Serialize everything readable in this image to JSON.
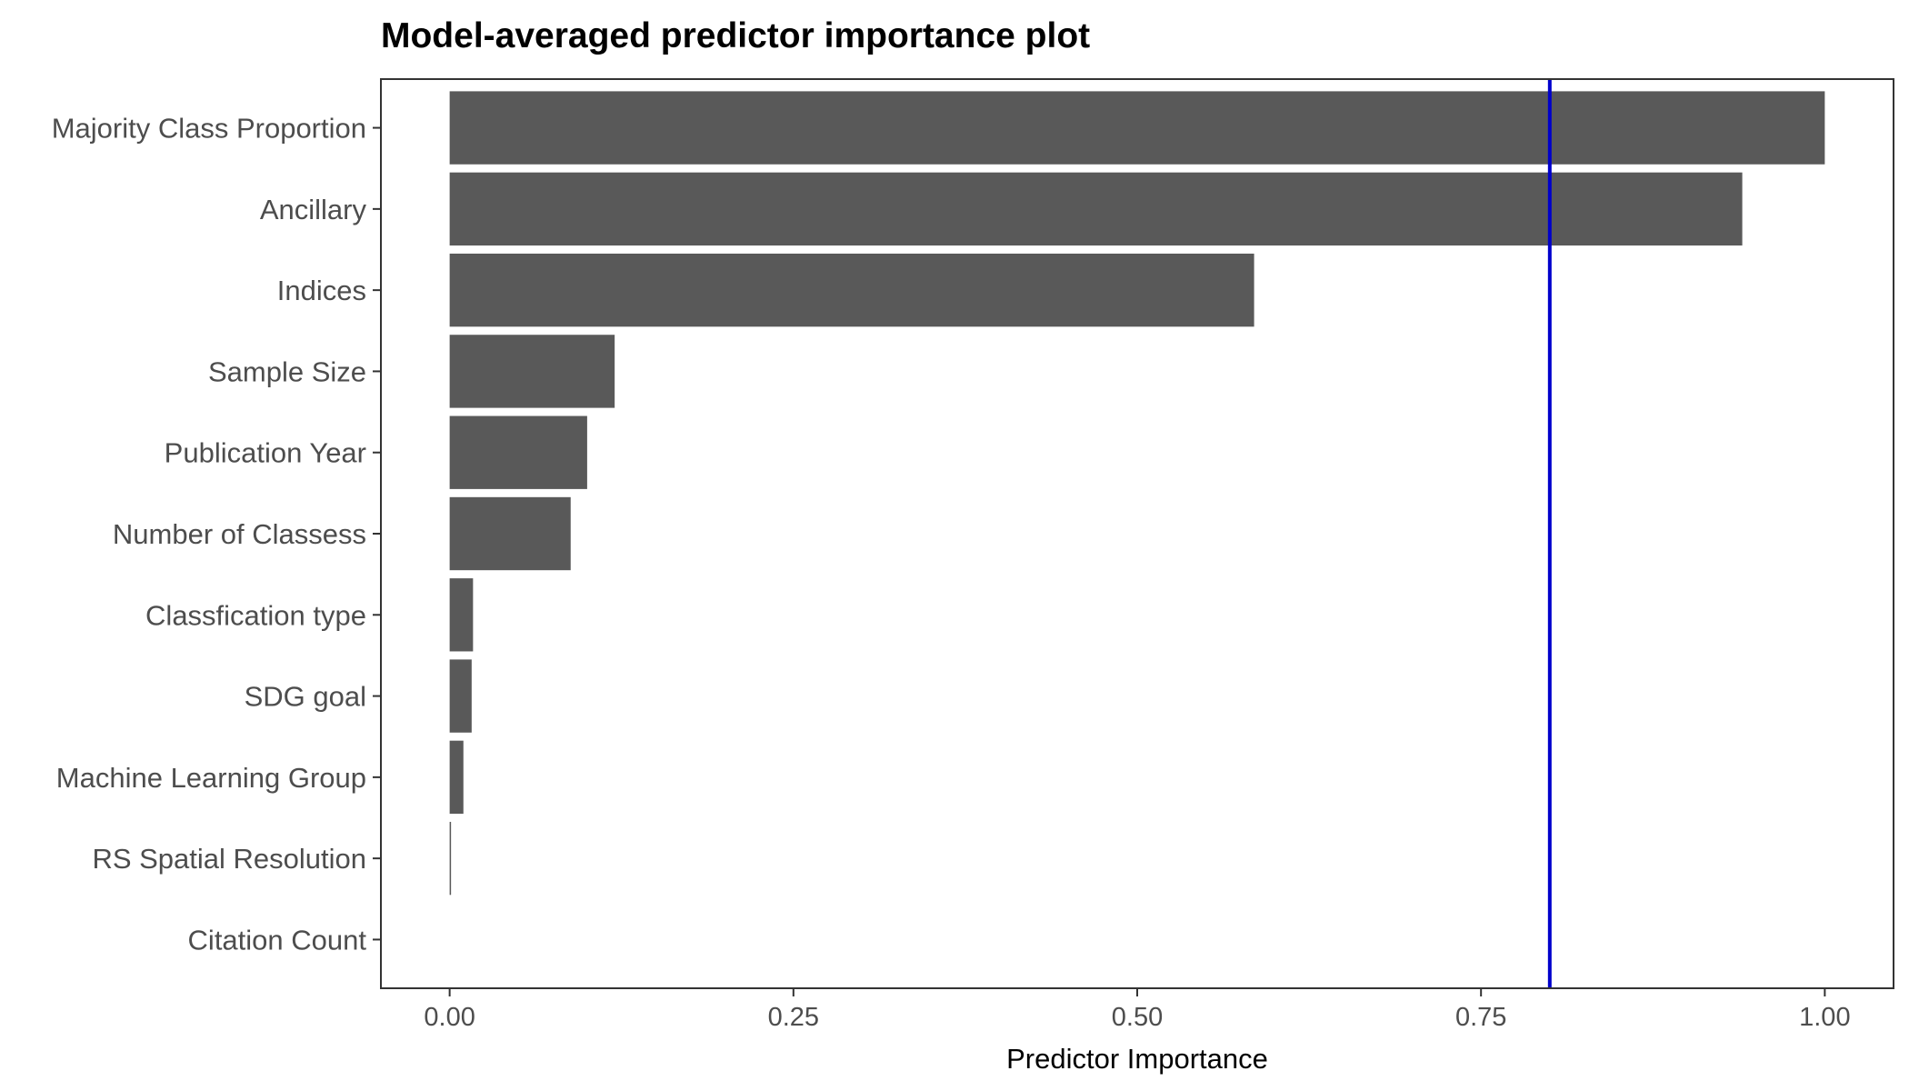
{
  "chart_data": {
    "type": "bar",
    "orientation": "horizontal",
    "title": "Model-averaged predictor importance plot",
    "xlabel": "Predictor Importance",
    "ylabel": "",
    "categories": [
      "Majority Class Proportion",
      "Ancillary",
      "Indices",
      "Sample Size",
      "Publication Year",
      "Number of Classess",
      "Classfication type",
      "SDG goal",
      "Machine Learning Group",
      "RS Spatial Resolution",
      "Citation Count"
    ],
    "values": [
      1.0,
      0.94,
      0.585,
      0.12,
      0.1,
      0.088,
      0.017,
      0.016,
      0.01,
      0.001,
      0.0
    ],
    "xlim": [
      -0.05,
      1.05
    ],
    "xticks": [
      0,
      0.25,
      0.5,
      0.75,
      1.0
    ],
    "xtick_labels": [
      "0.00",
      "0.25",
      "0.50",
      "0.75",
      "1.00"
    ],
    "reference_line": {
      "x": 0.8,
      "color": "#0000cc"
    },
    "bar_color": "#595959",
    "grid": false,
    "legend": "none"
  }
}
